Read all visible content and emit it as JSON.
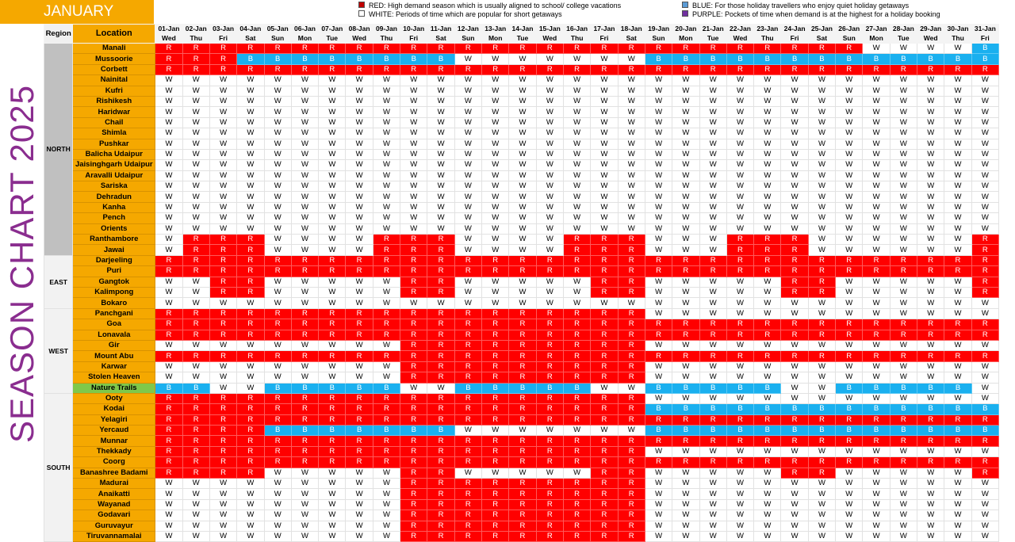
{
  "month": "JANUARY",
  "side_title": "SEASON CHART 2025",
  "legend": {
    "red": {
      "text": "RED: High demand season which is usually aligned to school/ college vacations",
      "color": "#c00000"
    },
    "white": {
      "text": "WHITE: Periods of time which are popular for short getaways",
      "color": "#ffffff"
    },
    "blue": {
      "text": "BLUE: For those holiday travellers who enjoy quiet holiday getaways",
      "color": "#5b9bd5"
    },
    "purple": {
      "text": "PURPLE: Pockets of time when demand is at the highest for a holiday booking",
      "color": "#7030a0"
    }
  },
  "headers": {
    "region": "Region",
    "location": "Location"
  },
  "dates": [
    "01-Jan",
    "02-Jan",
    "03-Jan",
    "04-Jan",
    "05-Jan",
    "06-Jan",
    "07-Jan",
    "08-Jan",
    "09-Jan",
    "10-Jan",
    "11-Jan",
    "12-Jan",
    "13-Jan",
    "14-Jan",
    "15-Jan",
    "16-Jan",
    "17-Jan",
    "18-Jan",
    "19-Jan",
    "20-Jan",
    "21-Jan",
    "22-Jan",
    "23-Jan",
    "24-Jan",
    "25-Jan",
    "26-Jan",
    "27-Jan",
    "28-Jan",
    "29-Jan",
    "30-Jan",
    "31-Jan"
  ],
  "days": [
    "Wed",
    "Thu",
    "Fri",
    "Sat",
    "Sun",
    "Mon",
    "Tue",
    "Wed",
    "Thu",
    "Fri",
    "Sat",
    "Sun",
    "Mon",
    "Tue",
    "Wed",
    "Thu",
    "Fri",
    "Sat",
    "Sun",
    "Mon",
    "Tue",
    "Wed",
    "Thu",
    "Fri",
    "Sat",
    "Sun",
    "Mon",
    "Tue",
    "Wed",
    "Thu",
    "Fri"
  ],
  "colors": {
    "R": "#ff0000",
    "B": "#1ab0ef",
    "W": "#ffffff",
    "location_bg": "#f5a800",
    "highlight_bg": "#7fc84a",
    "north_region_bg": "#c0c0c0",
    "side_title": "#8a2d8f"
  },
  "regions": [
    {
      "name": "NORTH",
      "highlight": true,
      "rows": [
        {
          "location": "Manali",
          "status": "RRRRRRRRRRRRRRRRRRRRRRRRRRWWWWB"
        },
        {
          "location": "Mussoorie",
          "status": "RRRBBBBBBBBWWWWWWWBBBBBBBBBBBBB"
        },
        {
          "location": "Corbett",
          "status": "RRRRRRRRRRRRRRRRRRRRRRRRRRRRRRR"
        },
        {
          "location": "Nainital",
          "status": "WWWWWWWWWWWWWWWWWWWWWWWWWWWWWWW"
        },
        {
          "location": "Kufri",
          "status": "WWWWWWWWWWWWWWWWWWWWWWWWWWWWWWW"
        },
        {
          "location": "Rishikesh",
          "status": "WWWWWWWWWWWWWWWWWWWWWWWWWWWWWWW"
        },
        {
          "location": "Haridwar",
          "status": "WWWWWWWWWWWWWWWWWWWWWWWWWWWWWWW"
        },
        {
          "location": "Chail",
          "status": "WWWWWWWWWWWWWWWWWWWWWWWWWWWWWWW"
        },
        {
          "location": "Shimla",
          "status": "WWWWWWWWWWWWWWWWWWWWWWWWWWWWWWW"
        },
        {
          "location": "Pushkar",
          "status": "WWWWWWWWWWWWWWWWWWWWWWWWWWWWWWW"
        },
        {
          "location": "Balicha Udaipur",
          "status": "WWWWWWWWWWWWWWWWWWWWWWWWWWWWWWW"
        },
        {
          "location": "Jaisinghgarh Udaipur",
          "status": "WWWWWWWWWWWWWWWWWWWWWWWWWWWWWWW"
        },
        {
          "location": "Aravalli Udaipur",
          "status": "WWWWWWWWWWWWWWWWWWWWWWWWWWWWWWW"
        },
        {
          "location": "Sariska",
          "status": "WWWWWWWWWWWWWWWWWWWWWWWWWWWWWWW"
        },
        {
          "location": "Dehradun",
          "status": "WWWWWWWWWWWWWWWWWWWWWWWWWWWWWWW"
        },
        {
          "location": "Kanha",
          "status": "WWWWWWWWWWWWWWWWWWWWWWWWWWWWWWW"
        },
        {
          "location": "Pench",
          "status": "WWWWWWWWWWWWWWWWWWWWWWWWWWWWWWW"
        },
        {
          "location": "Orients",
          "status": "WWWWWWWWWWWWWWWWWWWWWWWWWWWWWWW"
        },
        {
          "location": "Ranthambore",
          "status": "WRRRWWWWRRRWWWWRRRWWWRRRWWWWWWR"
        },
        {
          "location": "Jawai",
          "status": "WRRRWWWWRRRWWWWRRRWWWRRRWWWWWWR"
        }
      ]
    },
    {
      "name": "EAST",
      "highlight": false,
      "rows": [
        {
          "location": "Darjeeling",
          "status": "RRRRRRRRRRRRRRRRRRRRRRRRRRRRRRR"
        },
        {
          "location": "Puri",
          "status": "RRRRRRRRRRRRRRRRRRRRRRRRRRRRRRR"
        },
        {
          "location": "Gangtok",
          "status": "WWRRWWWWWRRWWWWWRRWWWWWRRWWWWWR"
        },
        {
          "location": "Kalimpong",
          "status": "WWRRWWWWWRRWWWWWRRWWWWWRRWWWWWR"
        },
        {
          "location": "Bokaro",
          "status": "WWWWWWWWWWWWWWWWWWWWWWWWWWWWWWW"
        }
      ]
    },
    {
      "name": "WEST",
      "highlight": false,
      "rows": [
        {
          "location": "Panchgani",
          "status": "RRRRRRRRRRRRRRRRRRWWWWWWWWWWWWW"
        },
        {
          "location": "Goa",
          "status": "RRRRRRRRRRRRRRRRRRRRRRRRRRRRRRR"
        },
        {
          "location": "Lonavala",
          "status": "RRRRRRRRRRRRRRRRRRRRRRRRRRRRRRR"
        },
        {
          "location": "Gir",
          "status": "WWWWWWWWWRRRRRRRRRWWWWWWWWWWWWW"
        },
        {
          "location": "Mount Abu",
          "status": "RRRRRRRRRRRRRRRRRRRRRRRRRRRRRRR"
        },
        {
          "location": "Karwar",
          "status": "WWWWWWWWWRRRRRRRRRWWWWWWWWWWWWW"
        },
        {
          "location": "Stolen Heaven",
          "status": "WWWWWWWWWRRRRRRRRRWWWWWWWWWWWWW"
        },
        {
          "location": "Nature Trails",
          "status": "BBWWBBBBBWWBBBBBWWBBBBBWWBBBBBW",
          "green": true
        }
      ]
    },
    {
      "name": "SOUTH",
      "highlight": false,
      "rows": [
        {
          "location": "Ooty",
          "status": "RRRRRRRRRRRRRRRRRRWWWWWWWWWWWWW"
        },
        {
          "location": "Kodai",
          "status": "RRRRRRRRRRRRRRRRRRBBBBBBBBBBBBB"
        },
        {
          "location": "Yelagiri",
          "status": "RRRRRRRRRRRRRRRRRRRRRRRRRRRRRRR"
        },
        {
          "location": "Yercaud",
          "status": "RRRRBBBBBBBWWWWWWWBBBBBBBBBBBBB"
        },
        {
          "location": "Munnar",
          "status": "RRRRRRRRRRRRRRRRRRRRRRRRRRRRRRR"
        },
        {
          "location": "Thekkady",
          "status": "RRRRRRRRRRRRRRRRRRWWWWWWWWWWWWW"
        },
        {
          "location": "Coorg",
          "status": "RRRRRRRRRRRRRRRRRRRRRRRRRRRRRRR"
        },
        {
          "location": "Banashree Badami",
          "status": "RRRRWWWWWRRWWWWWRRWWWWWRRWWWWWR"
        },
        {
          "location": "Madurai",
          "status": "WWWWWWWWWRRRRRRRRRWWWWWWWWWWWWW"
        },
        {
          "location": "Anaikatti",
          "status": "WWWWWWWWWRRRRRRRRRWWWWWWWWWWWWW"
        },
        {
          "location": "Wayanad",
          "status": "WWWWWWWWWRRRRRRRRRWWWWWWWWWWWWW"
        },
        {
          "location": "Godavari",
          "status": "WWWWWWWWWRRRRRRRRRWWWWWWWWWWWWW"
        },
        {
          "location": "Guruvayur",
          "status": "WWWWWWWWWRRRRRRRRRWWWWWWWWWWWWW"
        },
        {
          "location": "Tiruvannamalai",
          "status": "WWWWWWWWWRRRRRRRRRWWWWWWWWWWWWW"
        }
      ]
    }
  ]
}
